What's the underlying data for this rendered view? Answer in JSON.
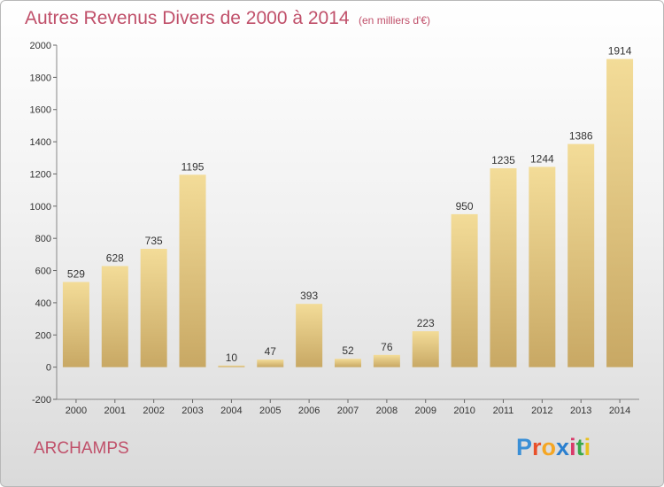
{
  "chart_data": {
    "type": "bar",
    "title": "Autres Revenus Divers de 2000 à 2014",
    "subtitle": "(en milliers d'€)",
    "categories": [
      "2000",
      "2001",
      "2002",
      "2003",
      "2004",
      "2005",
      "2006",
      "2007",
      "2008",
      "2009",
      "2010",
      "2011",
      "2012",
      "2013",
      "2014"
    ],
    "values": [
      529,
      628,
      735,
      1195,
      10,
      47,
      393,
      52,
      76,
      223,
      950,
      1235,
      1244,
      1386,
      1914
    ],
    "ylim": [
      -200,
      2000
    ],
    "yticks": [
      -200,
      0,
      200,
      400,
      600,
      800,
      1000,
      1200,
      1400,
      1600,
      1800,
      2000
    ],
    "grid": false,
    "xlabel": "",
    "ylabel": "",
    "colors": {
      "bar_light": "#f3dc98",
      "bar_dark": "#c8a864",
      "title": "#c0506a"
    }
  },
  "footer": {
    "commune": "ARCHAMPS",
    "logo_text": "Proxiti",
    "logo_colors": [
      "#3a8fd6",
      "#e8502a",
      "#f5a623",
      "#2a7fcf",
      "#d83a6a",
      "#3aa84a",
      "#e8c020"
    ]
  }
}
